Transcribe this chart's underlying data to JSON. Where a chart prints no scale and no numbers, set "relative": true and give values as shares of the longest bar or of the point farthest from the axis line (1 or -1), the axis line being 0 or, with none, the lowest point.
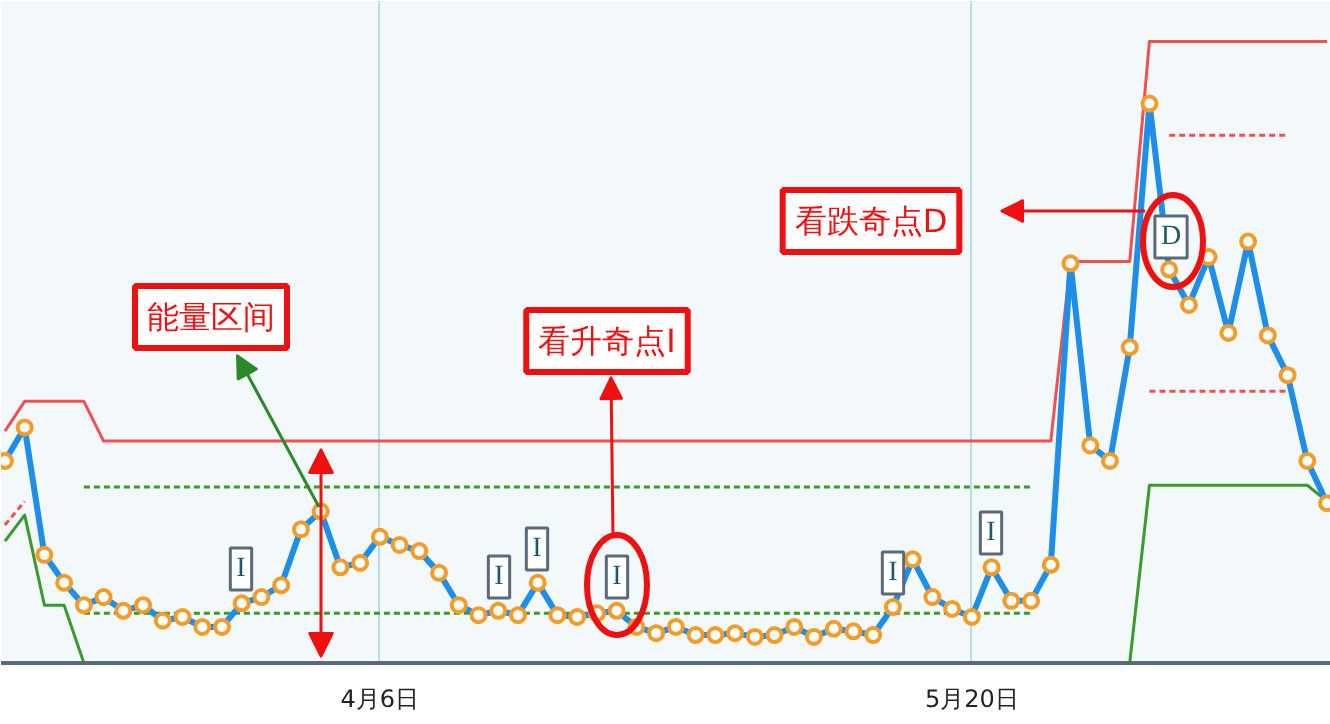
{
  "chart_data": {
    "type": "line",
    "relative": true,
    "grid": "x",
    "categories": [
      null,
      null,
      null,
      null,
      null,
      null,
      null,
      null,
      null,
      null,
      null,
      null,
      null,
      null,
      null,
      null,
      null,
      null,
      null,
      "4月6日",
      null,
      null,
      null,
      null,
      null,
      null,
      null,
      null,
      null,
      null,
      null,
      null,
      null,
      null,
      null,
      null,
      null,
      null,
      null,
      null,
      null,
      null,
      null,
      null,
      null,
      null,
      null,
      null,
      null,
      "5月20日",
      null,
      null,
      null,
      null,
      null,
      null,
      null,
      null,
      null,
      null,
      null,
      null,
      null,
      null,
      null,
      null,
      null,
      null
    ],
    "series": [
      {
        "color": "#f05050",
        "values": [
          0.373,
          0.421,
          0.421,
          0.421,
          0.421,
          0.357,
          0.357,
          0.357,
          0.357,
          0.357,
          0.357,
          0.357,
          0.357,
          0.357,
          0.357,
          0.357,
          0.357,
          0.357,
          0.357,
          0.357,
          0.357,
          0.357,
          0.357,
          0.357,
          0.357,
          0.357,
          0.357,
          0.357,
          0.357,
          0.357,
          0.357,
          0.357,
          0.357,
          0.357,
          0.357,
          0.357,
          0.357,
          0.357,
          0.357,
          0.357,
          0.357,
          0.357,
          0.357,
          0.357,
          0.357,
          0.357,
          0.357,
          0.357,
          0.357,
          0.357,
          0.357,
          0.357,
          0.357,
          0.357,
          0.646,
          0.646,
          0.646,
          0.646,
          1,
          1,
          1,
          1,
          1,
          1,
          1,
          1,
          1,
          1
        ]
      },
      {
        "color": "#f05050",
        "line_style": "dashed",
        "values": [
          0.222,
          0.26,
          null,
          null,
          null,
          null,
          null,
          null,
          null,
          null,
          null,
          null,
          null,
          null,
          null,
          null,
          null,
          null,
          null,
          null,
          null,
          null,
          null,
          null,
          null,
          null,
          null,
          null,
          null,
          null,
          null,
          null,
          null,
          null,
          null,
          null,
          null,
          null,
          null,
          null,
          null,
          null,
          null,
          null,
          null,
          null,
          null,
          null,
          null,
          null,
          null,
          null,
          null,
          null,
          null,
          null,
          null,
          null,
          null,
          null,
          null,
          null,
          null,
          null,
          null,
          null,
          null,
          null
        ]
      },
      {
        "color": "#f05050",
        "line_style": "dashed",
        "values": [
          null,
          null,
          null,
          null,
          null,
          null,
          null,
          null,
          null,
          null,
          null,
          null,
          null,
          null,
          null,
          null,
          null,
          null,
          null,
          null,
          null,
          null,
          null,
          null,
          null,
          null,
          null,
          null,
          null,
          null,
          null,
          null,
          null,
          null,
          null,
          null,
          null,
          null,
          null,
          null,
          null,
          null,
          null,
          null,
          null,
          null,
          null,
          null,
          null,
          null,
          null,
          null,
          null,
          null,
          null,
          null,
          null,
          null,
          null,
          0.849,
          0.849,
          0.849,
          0.849,
          0.849,
          0.849,
          0.849,
          null,
          null
        ]
      },
      {
        "color": "#f05050",
        "line_style": "dashed",
        "values": [
          null,
          null,
          null,
          null,
          null,
          null,
          null,
          null,
          null,
          null,
          null,
          null,
          null,
          null,
          null,
          null,
          null,
          null,
          null,
          null,
          null,
          null,
          null,
          null,
          null,
          null,
          null,
          null,
          null,
          null,
          null,
          null,
          null,
          null,
          null,
          null,
          null,
          null,
          null,
          null,
          null,
          null,
          null,
          null,
          null,
          null,
          null,
          null,
          null,
          null,
          null,
          null,
          null,
          null,
          null,
          null,
          null,
          null,
          0.437,
          0.437,
          0.437,
          0.437,
          0.437,
          0.437,
          0.437,
          0.437,
          null,
          null
        ]
      },
      {
        "color": "#3a9a2a",
        "values": [
          0.196,
          0.238,
          0.093,
          0.093,
          0,
          null,
          null,
          null,
          null,
          null,
          null,
          null,
          null,
          null,
          null,
          null,
          null,
          null,
          null,
          null,
          null,
          null,
          null,
          null,
          null,
          null,
          null,
          null,
          null,
          null,
          null,
          null,
          null,
          null,
          null,
          null,
          null,
          null,
          null,
          null,
          null,
          null,
          null,
          null,
          null,
          null,
          null,
          null,
          null,
          null,
          null,
          null,
          null,
          null,
          null,
          null,
          null,
          0,
          0.286,
          0.286,
          0.286,
          0.286,
          0.286,
          0.286,
          0.286,
          0.286,
          0.286,
          0.26
        ]
      },
      {
        "color": "#3a9a2a",
        "line_style": "dashed",
        "values": [
          null,
          null,
          null,
          null,
          0.283,
          0.283,
          0.283,
          0.283,
          0.283,
          0.283,
          0.283,
          0.283,
          0.283,
          0.283,
          0.283,
          0.283,
          0.283,
          0.283,
          0.283,
          0.283,
          0.283,
          0.283,
          0.283,
          0.283,
          0.283,
          0.283,
          0.283,
          0.283,
          0.283,
          0.283,
          0.283,
          0.283,
          0.283,
          0.283,
          0.283,
          0.283,
          0.283,
          0.283,
          0.283,
          0.283,
          0.283,
          0.283,
          0.283,
          0.283,
          0.283,
          0.283,
          0.283,
          0.283,
          0.283,
          0.283,
          0.283,
          0.283,
          0.283,
          null,
          null,
          null,
          null,
          null,
          null,
          null,
          null,
          null,
          null,
          null,
          null,
          null,
          null,
          null
        ]
      },
      {
        "color": "#3a9a2a",
        "line_style": "dashed",
        "values": [
          null,
          null,
          null,
          null,
          0.08,
          0.08,
          0.08,
          0.08,
          0.08,
          0.08,
          0.08,
          0.08,
          0.08,
          0.08,
          0.08,
          0.08,
          0.08,
          0.08,
          0.08,
          0.08,
          0.08,
          0.08,
          0.08,
          0.08,
          0.08,
          0.08,
          0.08,
          0.08,
          0.08,
          0.08,
          0.08,
          0.08,
          0.08,
          0.08,
          0.08,
          0.08,
          0.08,
          0.08,
          0.08,
          0.08,
          0.08,
          0.08,
          0.08,
          0.08,
          0.08,
          0.08,
          0.08,
          0.08,
          0.08,
          0.08,
          0.08,
          0.08,
          0.08,
          null,
          null,
          null,
          null,
          null,
          null,
          null,
          null,
          null,
          null,
          null,
          null,
          null,
          null,
          null
        ]
      },
      {
        "color": "#1e8fe8",
        "marker": "circle",
        "values": [
          0.325,
          0.379,
          0.174,
          0.129,
          0.093,
          0.106,
          0.084,
          0.093,
          0.068,
          0.074,
          0.058,
          0.058,
          0.096,
          0.106,
          0.125,
          0.215,
          0.244,
          0.154,
          0.161,
          0.203,
          0.19,
          0.18,
          0.145,
          0.093,
          0.077,
          0.084,
          0.077,
          0.129,
          0.077,
          0.074,
          0.08,
          0.084,
          0.058,
          0.048,
          0.058,
          0.045,
          0.045,
          0.048,
          0.042,
          0.045,
          0.058,
          0.042,
          0.055,
          0.051,
          0.045,
          0.09,
          0.167,
          0.106,
          0.087,
          0.074,
          0.154,
          0.1,
          0.1,
          0.158,
          0.643,
          0.35,
          0.325,
          0.508,
          0.9,
          0.633,
          0.576,
          0.653,
          0.531,
          0.678,
          0.527,
          0.463,
          0.325,
          0.257
        ]
      }
    ],
    "annotations": [
      "能量区间",
      "看升奇点I",
      "看跌奇点D",
      "I",
      "I",
      "I",
      "I",
      "I",
      "I",
      "D"
    ]
  }
}
